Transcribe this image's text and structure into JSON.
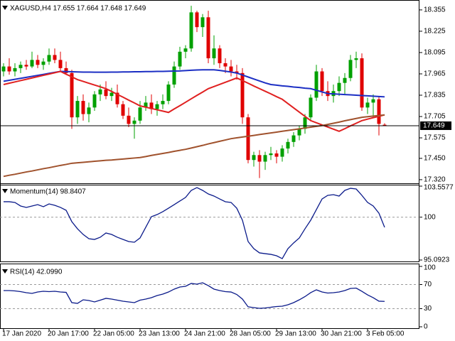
{
  "chart_data": [
    {
      "type": "candlestick",
      "title": "XAGUSD,H4  17.655 17.664 17.648 17.649",
      "categories": [
        "17 Jan 2020",
        null,
        null,
        null,
        null,
        null,
        null,
        null,
        "20 Jan 17:00",
        null,
        null,
        null,
        null,
        null,
        null,
        null,
        "22 Jan 05:00",
        null,
        null,
        null,
        null,
        null,
        null,
        null,
        "23 Jan 13:00",
        null,
        null,
        null,
        null,
        null,
        null,
        null,
        "24 Jan 21:00",
        null,
        null,
        null,
        null,
        null,
        null,
        null,
        "28 Jan 05:00",
        null,
        null,
        null,
        null,
        null,
        null,
        null,
        "29 Jan 13:00",
        null,
        null,
        null,
        null,
        null,
        null,
        null,
        "30 Jan 21:00",
        null,
        null,
        null,
        null,
        null,
        null,
        null,
        "3 Feb 05:00",
        null,
        null,
        null
      ],
      "open": [
        17.98,
        18.01,
        17.98,
        18.0,
        18.02,
        18.01,
        18.05,
        18.02,
        18.04,
        18.08,
        18.05,
        18.0,
        17.97,
        17.7,
        17.8,
        17.72,
        17.76,
        17.84,
        17.87,
        17.83,
        17.85,
        17.78,
        17.71,
        17.66,
        17.68,
        17.76,
        17.79,
        17.75,
        17.78,
        17.8,
        17.9,
        18.01,
        18.1,
        18.12,
        18.34,
        18.25,
        18.31,
        18.06,
        18.12,
        18.03,
        18.01,
        17.98,
        17.97,
        17.7,
        17.44,
        17.47,
        17.43,
        17.47,
        17.48,
        17.46,
        17.51,
        17.55,
        17.59,
        17.63,
        17.7,
        17.82,
        17.98,
        17.86,
        17.83,
        17.86,
        17.91,
        17.94,
        18.05,
        18.06,
        17.76,
        17.79,
        17.81,
        17.655
      ],
      "high": [
        18.03,
        18.06,
        18.03,
        18.04,
        18.05,
        18.1,
        18.08,
        18.06,
        18.12,
        18.12,
        18.1,
        18.04,
        17.99,
        17.83,
        17.84,
        17.79,
        17.86,
        17.9,
        17.92,
        17.88,
        17.9,
        17.8,
        17.76,
        17.7,
        17.8,
        17.83,
        17.84,
        17.8,
        17.84,
        17.92,
        18.04,
        18.13,
        18.14,
        18.38,
        18.35,
        18.33,
        18.35,
        18.2,
        18.14,
        18.06,
        18.05,
        18.02,
        18.0,
        17.72,
        17.49,
        17.5,
        17.49,
        17.52,
        17.5,
        17.53,
        17.57,
        17.61,
        17.65,
        17.72,
        17.84,
        18.02,
        18.0,
        17.92,
        17.9,
        17.95,
        17.97,
        18.08,
        18.1,
        18.09,
        17.82,
        17.84,
        17.83,
        17.664
      ],
      "low": [
        17.95,
        17.96,
        17.95,
        17.97,
        17.99,
        18.0,
        18.0,
        17.99,
        18.02,
        18.03,
        17.98,
        17.96,
        17.63,
        17.66,
        17.68,
        17.67,
        17.74,
        17.8,
        17.81,
        17.8,
        17.76,
        17.69,
        17.64,
        17.57,
        17.66,
        17.74,
        17.72,
        17.71,
        17.75,
        17.78,
        17.88,
        17.99,
        18.06,
        18.1,
        18.22,
        18.19,
        18.03,
        18.02,
        18.0,
        17.97,
        17.95,
        17.93,
        17.66,
        17.42,
        17.4,
        17.33,
        17.38,
        17.44,
        17.42,
        17.43,
        17.48,
        17.52,
        17.56,
        17.6,
        17.68,
        17.8,
        17.83,
        17.8,
        17.79,
        17.83,
        17.84,
        17.92,
        18.0,
        17.74,
        17.72,
        17.7,
        17.59,
        17.648
      ],
      "close": [
        18.01,
        17.98,
        18.0,
        18.02,
        18.01,
        18.05,
        18.02,
        18.04,
        18.08,
        18.05,
        18.0,
        17.97,
        17.7,
        17.8,
        17.72,
        17.76,
        17.84,
        17.87,
        17.83,
        17.85,
        17.78,
        17.71,
        17.66,
        17.68,
        17.76,
        17.79,
        17.75,
        17.78,
        17.8,
        17.9,
        18.01,
        18.1,
        18.12,
        18.34,
        18.25,
        18.31,
        18.06,
        18.12,
        18.03,
        18.01,
        17.98,
        17.97,
        17.7,
        17.44,
        17.47,
        17.43,
        17.47,
        17.48,
        17.46,
        17.51,
        17.55,
        17.59,
        17.63,
        17.7,
        17.82,
        17.98,
        17.86,
        17.83,
        17.86,
        17.91,
        17.94,
        18.05,
        18.06,
        17.76,
        17.79,
        17.81,
        17.66,
        17.649
      ],
      "up_color": "#00a000",
      "down_color": "#e00000",
      "series": [
        {
          "color": "#1c2fc4",
          "values": [
            17.92,
            17.926,
            17.932,
            17.938,
            17.944,
            17.95,
            17.956,
            17.962,
            17.968,
            17.974,
            17.98,
            17.979,
            17.978,
            17.977,
            17.976,
            17.976,
            17.975,
            17.975,
            17.975,
            17.976,
            17.976,
            17.977,
            17.977,
            17.978,
            17.978,
            17.979,
            17.979,
            17.98,
            17.98,
            17.981,
            17.982,
            17.983,
            17.985,
            17.987,
            17.989,
            17.99,
            17.99,
            17.99,
            17.986,
            17.981,
            17.976,
            17.97,
            17.958,
            17.946,
            17.934,
            17.922,
            17.91,
            17.9,
            17.896,
            17.892,
            17.889,
            17.885,
            17.882,
            17.878,
            17.875,
            17.865,
            17.855,
            17.845,
            17.843,
            17.841,
            17.839,
            17.837,
            17.835,
            17.833,
            17.831,
            17.829,
            17.827,
            17.825
          ]
        },
        {
          "color": "#e02020",
          "values": [
            17.9,
            17.908,
            17.916,
            17.924,
            17.932,
            17.94,
            17.948,
            17.956,
            17.964,
            17.972,
            17.98,
            17.963,
            17.947,
            17.93,
            17.919,
            17.908,
            17.897,
            17.886,
            17.875,
            17.858,
            17.84,
            17.823,
            17.805,
            17.788,
            17.77,
            17.762,
            17.754,
            17.746,
            17.738,
            17.73,
            17.751,
            17.771,
            17.792,
            17.813,
            17.834,
            17.854,
            17.875,
            17.888,
            17.901,
            17.914,
            17.927,
            17.94,
            17.924,
            17.908,
            17.891,
            17.875,
            17.859,
            17.843,
            17.826,
            17.81,
            17.784,
            17.758,
            17.732,
            17.706,
            17.68,
            17.667,
            17.654,
            17.641,
            17.628,
            17.615,
            17.631,
            17.648,
            17.664,
            17.68,
            17.689,
            17.698,
            17.706,
            17.715
          ]
        },
        {
          "color": "#a0522d",
          "values": [
            17.34,
            17.347,
            17.353,
            17.36,
            17.367,
            17.373,
            17.38,
            17.387,
            17.393,
            17.4,
            17.407,
            17.413,
            17.42,
            17.423,
            17.426,
            17.429,
            17.432,
            17.435,
            17.438,
            17.44,
            17.443,
            17.446,
            17.449,
            17.452,
            17.455,
            17.461,
            17.468,
            17.474,
            17.48,
            17.486,
            17.493,
            17.499,
            17.505,
            17.513,
            17.521,
            17.529,
            17.538,
            17.546,
            17.554,
            17.562,
            17.57,
            17.575,
            17.58,
            17.585,
            17.59,
            17.595,
            17.6,
            17.605,
            17.61,
            17.615,
            17.62,
            17.625,
            17.63,
            17.635,
            17.64,
            17.645,
            17.65,
            17.657,
            17.664,
            17.671,
            17.679,
            17.686,
            17.693,
            17.7,
            17.704,
            17.708,
            17.711,
            17.715
          ]
        }
      ],
      "ylim": [
        17.298,
        18.398
      ],
      "yticks": [
        18.355,
        18.225,
        18.095,
        17.965,
        17.835,
        17.705,
        17.575,
        {
          "value": 17.45,
          "label": "17.450"
        },
        {
          "value": 17.32,
          "label": "17.320"
        }
      ],
      "grid": false,
      "price_line": 17.649
    },
    {
      "type": "line",
      "title": "Momentum(14) 98.8407",
      "color": "#0a1a8a",
      "values": [
        101.77,
        101.77,
        101.69,
        101.28,
        101.12,
        101.28,
        101.44,
        101.2,
        101.52,
        101.36,
        101.12,
        100.79,
        99.49,
        98.67,
        98.02,
        97.53,
        97.45,
        97.7,
        98.19,
        98.02,
        97.7,
        97.45,
        97.21,
        97.13,
        97.62,
        98.84,
        100.06,
        100.3,
        100.63,
        101.03,
        101.44,
        101.85,
        102.26,
        103.07,
        103.39,
        103.07,
        102.66,
        102.42,
        102.09,
        101.77,
        101.69,
        101.03,
        99.65,
        97.21,
        96.39,
        95.91,
        95.82,
        95.74,
        95.58,
        95.25,
        96.39,
        97.05,
        97.62,
        98.67,
        99.65,
        100.87,
        102.09,
        102.5,
        102.58,
        102.42,
        103.07,
        103.31,
        103.23,
        102.5,
        101.69,
        101.28,
        100.46,
        98.8407
      ],
      "ylim": [
        95.0923,
        103.5577
      ],
      "yticks": [
        103.5577,
        100,
        95.0923
      ],
      "grid": true
    },
    {
      "type": "line",
      "title": "RSI(14) 42.0990",
      "color": "#0a1a8a",
      "values": [
        60.0,
        60.0,
        59.4,
        58.2,
        56.5,
        55.3,
        57.6,
        58.8,
        58.2,
        58.8,
        57.6,
        57.0,
        40.0,
        38.8,
        44.7,
        43.5,
        41.2,
        44.1,
        47.1,
        45.9,
        44.1,
        42.4,
        41.2,
        40.0,
        44.1,
        45.9,
        48.2,
        51.8,
        54.1,
        57.6,
        62.4,
        65.9,
        67.1,
        71.8,
        70.6,
        72.9,
        68.2,
        62.4,
        60.0,
        58.2,
        57.6,
        53.5,
        45.9,
        33.0,
        31.8,
        30.6,
        31.2,
        32.4,
        33.5,
        34.1,
        36.5,
        40.0,
        44.7,
        50.0,
        56.5,
        61.2,
        57.6,
        55.9,
        56.5,
        57.6,
        60.0,
        63.5,
        64.1,
        58.8,
        52.9,
        48.2,
        42.4,
        42.099
      ],
      "ylim": [
        0,
        100
      ],
      "yticks": [
        100,
        70,
        30,
        0
      ],
      "grid": true
    }
  ]
}
